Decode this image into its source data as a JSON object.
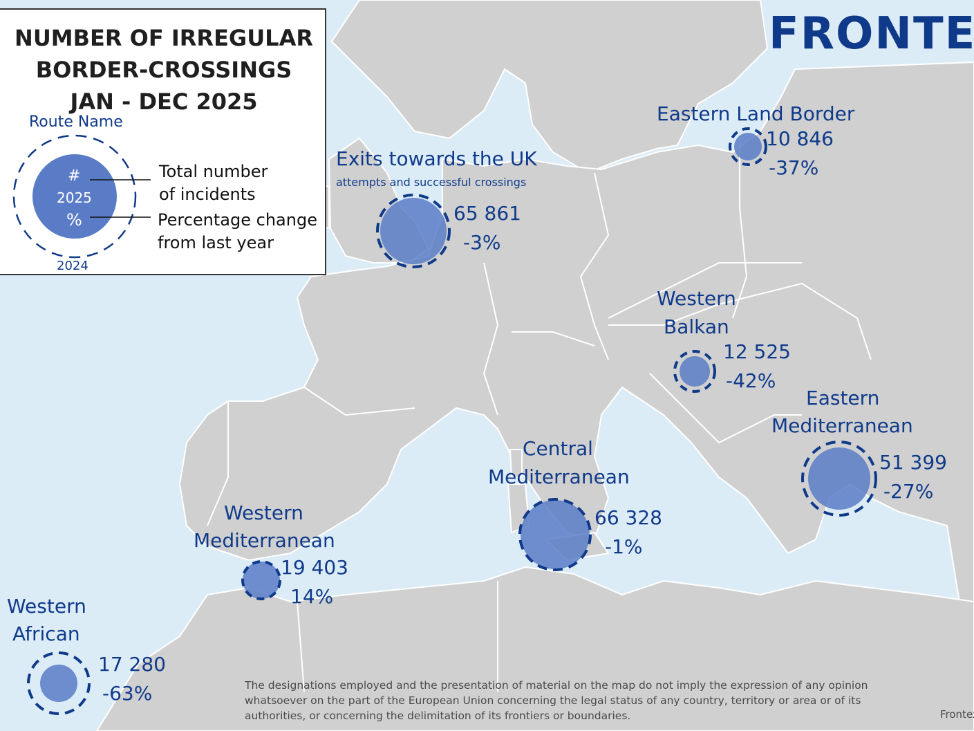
{
  "title": {
    "line1": "NUMBER OF IRREGULAR",
    "line2": "BORDER-CROSSINGS",
    "line3": "JAN - DEC 2025"
  },
  "legend": {
    "route_name": "Route Name",
    "hash": "#",
    "year_current": "2025",
    "percent": "%",
    "year_previous": "2024",
    "total_line1": "Total number",
    "total_line2": "of incidents",
    "change_line1": "Percentage change",
    "change_line2": "from last year"
  },
  "logo": "FRONTEX",
  "routes": [
    {
      "name_lines": [
        "Exits towards the UK"
      ],
      "subtitle": "attempts and successful crossings",
      "value": "65 861",
      "change": "-3%",
      "value_num": 65861,
      "change_pct": -3
    },
    {
      "name_lines": [
        "Eastern Land Border"
      ],
      "value": "10 846",
      "change": "-37%",
      "value_num": 10846,
      "change_pct": -37
    },
    {
      "name_lines": [
        "Western",
        "Balkan"
      ],
      "value": "12 525",
      "change": "-42%",
      "value_num": 12525,
      "change_pct": -42
    },
    {
      "name_lines": [
        "Eastern",
        "Mediterranean"
      ],
      "value": "51 399",
      "change": "-27%",
      "value_num": 51399,
      "change_pct": -27
    },
    {
      "name_lines": [
        "Central",
        "Mediterranean"
      ],
      "value": "66 328",
      "change": "-1%",
      "value_num": 66328,
      "change_pct": -1
    },
    {
      "name_lines": [
        "Western",
        "Mediterranean"
      ],
      "value": "19 403",
      "change": "14%",
      "value_num": 19403,
      "change_pct": 14
    },
    {
      "name_lines": [
        "Western",
        "African"
      ],
      "value": "17 280",
      "change": "-63%",
      "value_num": 17280,
      "change_pct": -63
    }
  ],
  "disclaimer": "The designations employed and the presentation of material on the map do not imply the expression of any opinion whatsoever on the part of the European Union concerning the legal status of any country, territory or area or of its authorities, or concerning the delimitation of its frontiers or boundaries.",
  "credit": "Frontex",
  "colors": {
    "sea": "#dcecf7",
    "land": "#d0d0d0",
    "border": "#ffffff",
    "bubble_fill": "#5a7cc7",
    "bubble_ring": "#0f3a8a",
    "text": "#0f3a8a"
  }
}
